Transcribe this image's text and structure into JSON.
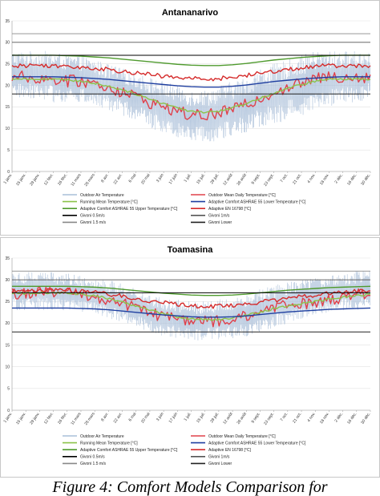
{
  "chart_data": [
    {
      "type": "line",
      "title": "Antananarivo",
      "xlabel": "",
      "ylabel": "",
      "ylim": [
        0,
        35
      ],
      "yticks": [
        0,
        5,
        10,
        15,
        20,
        25,
        30,
        35
      ],
      "x_tick_labels": [
        "1 janv.",
        "15 janv.",
        "29 janv.",
        "12 févr.",
        "26 févr.",
        "11 mars",
        "25 mars",
        "8 avr.",
        "22 avr.",
        "6 mai",
        "20 mai",
        "3 juin",
        "17 juin",
        "1 juil.",
        "15 juil.",
        "29 juil.",
        "12 août",
        "26 août",
        "9 sept.",
        "23 sept.",
        "7 oct.",
        "21 oct.",
        "4 nov.",
        "18 nov.",
        "2 déc.",
        "16 déc.",
        "30 déc."
      ],
      "grid": true,
      "legend_position": "bottom",
      "legend": [
        {
          "label": "Outdoor Air Temperature",
          "color": "#a9bfd9"
        },
        {
          "label": "Outdoor Mean Daily Temperature [°C]",
          "color": "#e0404a"
        },
        {
          "label": "Running Mean Temperature [°C]",
          "color": "#8cc34a"
        },
        {
          "label": "Adaptive Comfort ASHRAE 55    Lower Temperature  [°C]",
          "color": "#1f3fa0"
        },
        {
          "label": "Adaptive Comfort ASHRAE 55    Upper Temperature  [°C]",
          "color": "#4f9a2e"
        },
        {
          "label": "Adaptive EN 16798 [°C]",
          "color": "#d52b2b"
        },
        {
          "label": "Givoni      0.5m/s",
          "color": "#000000"
        },
        {
          "label": "Givoni      1m/s",
          "color": "#555555"
        },
        {
          "label": "Givoni 1.5 m/s",
          "color": "#888888"
        },
        {
          "label": "Givoni Lower",
          "color": "#222222"
        }
      ],
      "series": [
        {
          "name": "Outdoor Air Temperature",
          "color": "#a9bfd9",
          "envelope_low": [
            17,
            17,
            17,
            16,
            16,
            16,
            15,
            14,
            13,
            12,
            10,
            9,
            8,
            7,
            7,
            7,
            8,
            9,
            10,
            11,
            12,
            13,
            14,
            15,
            16,
            16,
            17
          ],
          "envelope_high": [
            28,
            28,
            28,
            28,
            27,
            27,
            26,
            25,
            24,
            23,
            22,
            21,
            20,
            19,
            19,
            20,
            21,
            22,
            24,
            25,
            26,
            27,
            28,
            28,
            28,
            28,
            28
          ]
        },
        {
          "name": "Outdoor Mean Daily Temperature [°C]",
          "color": "#e0404a",
          "values": [
            22,
            22,
            21.5,
            21.5,
            21,
            21,
            20.5,
            19.5,
            18.5,
            17.5,
            16,
            15,
            14,
            13,
            13,
            13.5,
            14.5,
            15.5,
            17,
            18.5,
            19.5,
            20.5,
            21.5,
            22,
            22,
            22,
            22
          ]
        },
        {
          "name": "Running Mean Temperature [°C]",
          "color": "#8cc34a",
          "values": [
            21.5,
            21.5,
            21.5,
            21.5,
            21.2,
            21,
            20.5,
            19.8,
            19,
            18,
            16.8,
            15.8,
            14.8,
            14,
            13.8,
            14,
            14.8,
            15.8,
            17,
            18.2,
            19.3,
            20.2,
            21,
            21.4,
            21.5,
            21.5,
            21.5
          ]
        },
        {
          "name": "Adaptive Comfort ASHRAE 55    Lower Temperature  [°C]",
          "color": "#1f3fa0",
          "values": [
            22,
            22,
            22,
            22,
            21.9,
            21.8,
            21.6,
            21.4,
            21.1,
            20.8,
            20.5,
            20.2,
            19.9,
            19.7,
            19.6,
            19.6,
            19.8,
            20.1,
            20.5,
            20.9,
            21.2,
            21.5,
            21.7,
            21.9,
            22,
            22,
            22
          ]
        },
        {
          "name": "Adaptive Comfort ASHRAE 55    Upper Temperature  [°C]",
          "color": "#4f9a2e",
          "values": [
            27,
            27,
            27,
            27,
            26.9,
            26.8,
            26.6,
            26.4,
            26.1,
            25.8,
            25.5,
            25.2,
            24.9,
            24.7,
            24.6,
            24.6,
            24.8,
            25.1,
            25.5,
            25.9,
            26.2,
            26.5,
            26.7,
            26.9,
            27,
            27,
            27
          ]
        },
        {
          "name": "Adaptive EN 16798 [°C]",
          "color": "#d52b2b",
          "values": [
            24.5,
            24.6,
            24.7,
            24.6,
            24.4,
            24.3,
            24,
            23.7,
            23.3,
            22.9,
            22.5,
            22.1,
            21.8,
            21.6,
            21.5,
            21.6,
            21.9,
            22.3,
            22.8,
            23.3,
            23.7,
            24.1,
            24.4,
            24.6,
            24.6,
            24.5,
            24.5
          ]
        },
        {
          "name": "Givoni      0.5m/s",
          "color": "#000000",
          "values": [
            27,
            27,
            27,
            27,
            27,
            27,
            27,
            27,
            27,
            27,
            27,
            27,
            27,
            27,
            27,
            27,
            27,
            27,
            27,
            27,
            27,
            27,
            27,
            27,
            27,
            27,
            27
          ]
        },
        {
          "name": "Givoni      1m/s",
          "color": "#555555",
          "values": [
            30,
            30,
            30,
            30,
            30,
            30,
            30,
            30,
            30,
            30,
            30,
            30,
            30,
            30,
            30,
            30,
            30,
            30,
            30,
            30,
            30,
            30,
            30,
            30,
            30,
            30,
            30
          ]
        },
        {
          "name": "Givoni 1.5 m/s",
          "color": "#888888",
          "values": [
            32,
            32,
            32,
            32,
            32,
            32,
            32,
            32,
            32,
            32,
            32,
            32,
            32,
            32,
            32,
            32,
            32,
            32,
            32,
            32,
            32,
            32,
            32,
            32,
            32,
            32,
            32
          ]
        },
        {
          "name": "Givoni Lower",
          "color": "#222222",
          "values": [
            18,
            18,
            18,
            18,
            18,
            18,
            18,
            18,
            18,
            18,
            18,
            18,
            18,
            18,
            18,
            18,
            18,
            18,
            18,
            18,
            18,
            18,
            18,
            18,
            18,
            18,
            18
          ]
        }
      ]
    },
    {
      "type": "line",
      "title": "Toamasina",
      "xlabel": "",
      "ylabel": "",
      "ylim": [
        0,
        35
      ],
      "yticks": [
        0,
        5,
        10,
        15,
        20,
        25,
        30,
        35
      ],
      "x_tick_labels": [
        "1 janv.",
        "15 janv.",
        "29 janv.",
        "12 févr.",
        "26 févr.",
        "11 mars",
        "25 mars",
        "8 avr.",
        "22 avr.",
        "6 mai",
        "20 mai",
        "3 juin",
        "17 juin",
        "1 juil.",
        "15 juil.",
        "29 juil.",
        "12 août",
        "26 août",
        "9 sept.",
        "23 sept.",
        "7 oct.",
        "21 oct.",
        "4 nov.",
        "18 nov.",
        "2 déc.",
        "16 déc.",
        "30 déc."
      ],
      "grid": true,
      "legend_position": "bottom",
      "legend": [
        {
          "label": "Outdoor Air Temperature",
          "color": "#a9bfd9"
        },
        {
          "label": "Outdoor Mean Daily Temperature [°C]",
          "color": "#e0404a"
        },
        {
          "label": "Running Mean Temperature [°C]",
          "color": "#8cc34a"
        },
        {
          "label": "Adaptive Comfort ASHRAE 55    Lower Temperature  [°C]",
          "color": "#1f3fa0"
        },
        {
          "label": "Adaptive Comfort ASHRAE 55    Upper Temperature  [°C]",
          "color": "#4f9a2e"
        },
        {
          "label": "Adaptive EN 16798 [°C]",
          "color": "#d52b2b"
        },
        {
          "label": "Givoni      0.5m/s",
          "color": "#000000"
        },
        {
          "label": "Givoni      1m/s",
          "color": "#555555"
        },
        {
          "label": "Givoni 1.5 m/s",
          "color": "#888888"
        },
        {
          "label": "Givoni Lower",
          "color": "#222222"
        }
      ],
      "series": [
        {
          "name": "Outdoor Air Temperature",
          "color": "#a9bfd9",
          "envelope_low": [
            23,
            23,
            23,
            23,
            23,
            22.5,
            22,
            21,
            20,
            19,
            18,
            17,
            16.5,
            16,
            16,
            16,
            16.5,
            17,
            18,
            19,
            20,
            21,
            22,
            22.5,
            23,
            23,
            23
          ],
          "envelope_high": [
            32,
            32,
            32,
            32,
            31.5,
            31,
            30.5,
            30,
            29,
            28,
            27,
            26,
            25.5,
            25,
            25,
            25.5,
            26,
            27,
            28,
            29,
            29.5,
            30,
            30.5,
            31,
            31.5,
            32,
            32
          ]
        },
        {
          "name": "Outdoor Mean Daily Temperature [°C]",
          "color": "#e0404a",
          "values": [
            27,
            27,
            27,
            27,
            27,
            26.5,
            26,
            25.5,
            24.5,
            23.5,
            22.5,
            21.5,
            21,
            20.5,
            20.5,
            20.5,
            21,
            21.5,
            22.5,
            23.5,
            24,
            24.5,
            25,
            25.5,
            26,
            26.5,
            27
          ]
        },
        {
          "name": "Running Mean Temperature [°C]",
          "color": "#8cc34a",
          "values": [
            26.8,
            26.9,
            27,
            27,
            26.9,
            26.7,
            26.3,
            25.7,
            24.9,
            24,
            23,
            22.2,
            21.5,
            21,
            20.8,
            20.8,
            21.2,
            21.8,
            22.6,
            23.4,
            24,
            24.5,
            25,
            25.5,
            26,
            26.4,
            26.7
          ]
        },
        {
          "name": "Adaptive Comfort ASHRAE 55    Lower Temperature  [°C]",
          "color": "#1f3fa0",
          "values": [
            23.5,
            23.5,
            23.5,
            23.5,
            23.5,
            23.4,
            23.3,
            23.1,
            22.8,
            22.5,
            22.2,
            21.9,
            21.7,
            21.5,
            21.4,
            21.4,
            21.5,
            21.7,
            22,
            22.3,
            22.6,
            22.8,
            23,
            23.2,
            23.3,
            23.4,
            23.5
          ]
        },
        {
          "name": "Adaptive Comfort ASHRAE 55    Upper Temperature  [°C]",
          "color": "#4f9a2e",
          "values": [
            28.5,
            28.5,
            28.5,
            28.5,
            28.5,
            28.4,
            28.3,
            28.1,
            27.8,
            27.5,
            27.2,
            26.9,
            26.7,
            26.5,
            26.4,
            26.4,
            26.5,
            26.7,
            27,
            27.3,
            27.6,
            27.8,
            28,
            28.2,
            28.3,
            28.4,
            28.5
          ]
        },
        {
          "name": "Adaptive EN 16798 [°C]",
          "color": "#d52b2b",
          "values": [
            27.5,
            27.6,
            27.7,
            27.7,
            27.6,
            27.4,
            27.1,
            26.7,
            26.2,
            25.7,
            25.2,
            24.7,
            24.3,
            24,
            23.9,
            23.9,
            24.1,
            24.4,
            24.9,
            25.3,
            25.7,
            26.1,
            26.5,
            26.8,
            27.1,
            27.3,
            27.5
          ]
        },
        {
          "name": "Givoni      0.5m/s",
          "color": "#000000",
          "values": [
            27,
            27,
            27,
            27,
            27,
            27,
            27,
            27,
            27,
            27,
            27,
            27,
            27,
            27,
            27,
            27,
            27,
            27,
            27,
            27,
            27,
            27,
            27,
            27,
            27,
            27,
            27
          ]
        },
        {
          "name": "Givoni      1m/s",
          "color": "#555555",
          "values": [
            30,
            30,
            30,
            30,
            30,
            30,
            30,
            30,
            30,
            30,
            30,
            30,
            30,
            30,
            30,
            30,
            30,
            30,
            30,
            30,
            30,
            30,
            30,
            30,
            30,
            30,
            30
          ]
        },
        {
          "name": "Givoni 1.5 m/s",
          "color": "#888888",
          "values": [
            32,
            32,
            32,
            32,
            32,
            32,
            32,
            32,
            32,
            32,
            32,
            32,
            32,
            32,
            32,
            32,
            32,
            32,
            32,
            32,
            32,
            32,
            32,
            32,
            32,
            32,
            32
          ]
        },
        {
          "name": "Givoni Lower",
          "color": "#222222",
          "values": [
            18,
            18,
            18,
            18,
            18,
            18,
            18,
            18,
            18,
            18,
            18,
            18,
            18,
            18,
            18,
            18,
            18,
            18,
            18,
            18,
            18,
            18,
            18,
            18,
            18,
            18,
            18
          ]
        }
      ]
    }
  ],
  "caption": "Figure 4:  Comfort Models Comparison for"
}
